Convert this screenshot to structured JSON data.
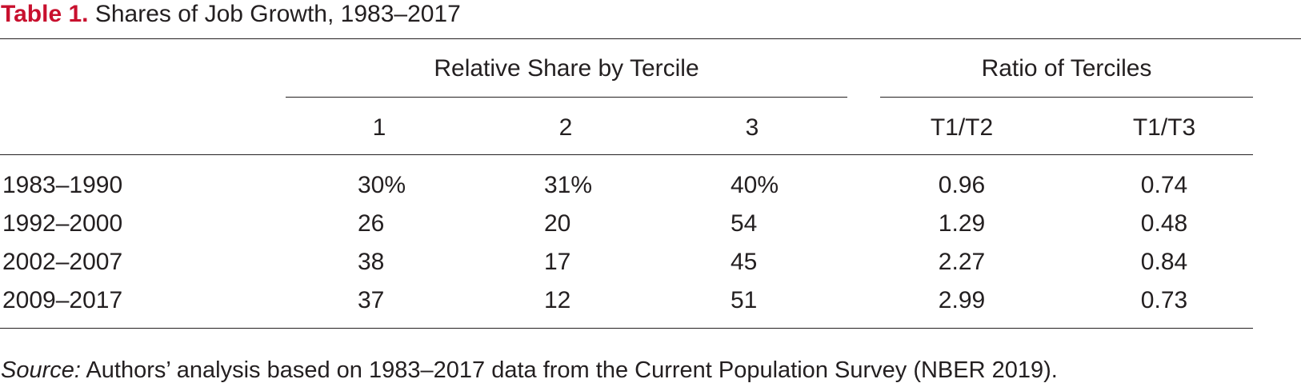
{
  "table": {
    "title_label": "Table 1.",
    "title_text": "Shares of Job Growth, 1983–2017",
    "group_headers": {
      "relative_share": "Relative Share by Tercile",
      "ratio": "Ratio of Terciles"
    },
    "column_headers": [
      "1",
      "2",
      "3",
      "T1/T2",
      "T1/T3"
    ],
    "rows": [
      {
        "period": "1983–1990",
        "t1": "30%",
        "t2": "31%",
        "t3": "40%",
        "r12": "0.96",
        "r13": "0.74"
      },
      {
        "period": "1992–2000",
        "t1": "26",
        "t2": "20",
        "t3": "54",
        "r12": "1.29",
        "r13": "0.48"
      },
      {
        "period": "2002–2007",
        "t1": "38",
        "t2": "17",
        "t3": "45",
        "r12": "2.27",
        "r13": "0.84"
      },
      {
        "period": "2009–2017",
        "t1": "37",
        "t2": "12",
        "t3": "51",
        "r12": "2.99",
        "r13": "0.73"
      }
    ],
    "source_label": "Source:",
    "source_text": " Authors’ analysis based on 1983–2017 data from the Current Population Survey (NBER 2019)."
  }
}
